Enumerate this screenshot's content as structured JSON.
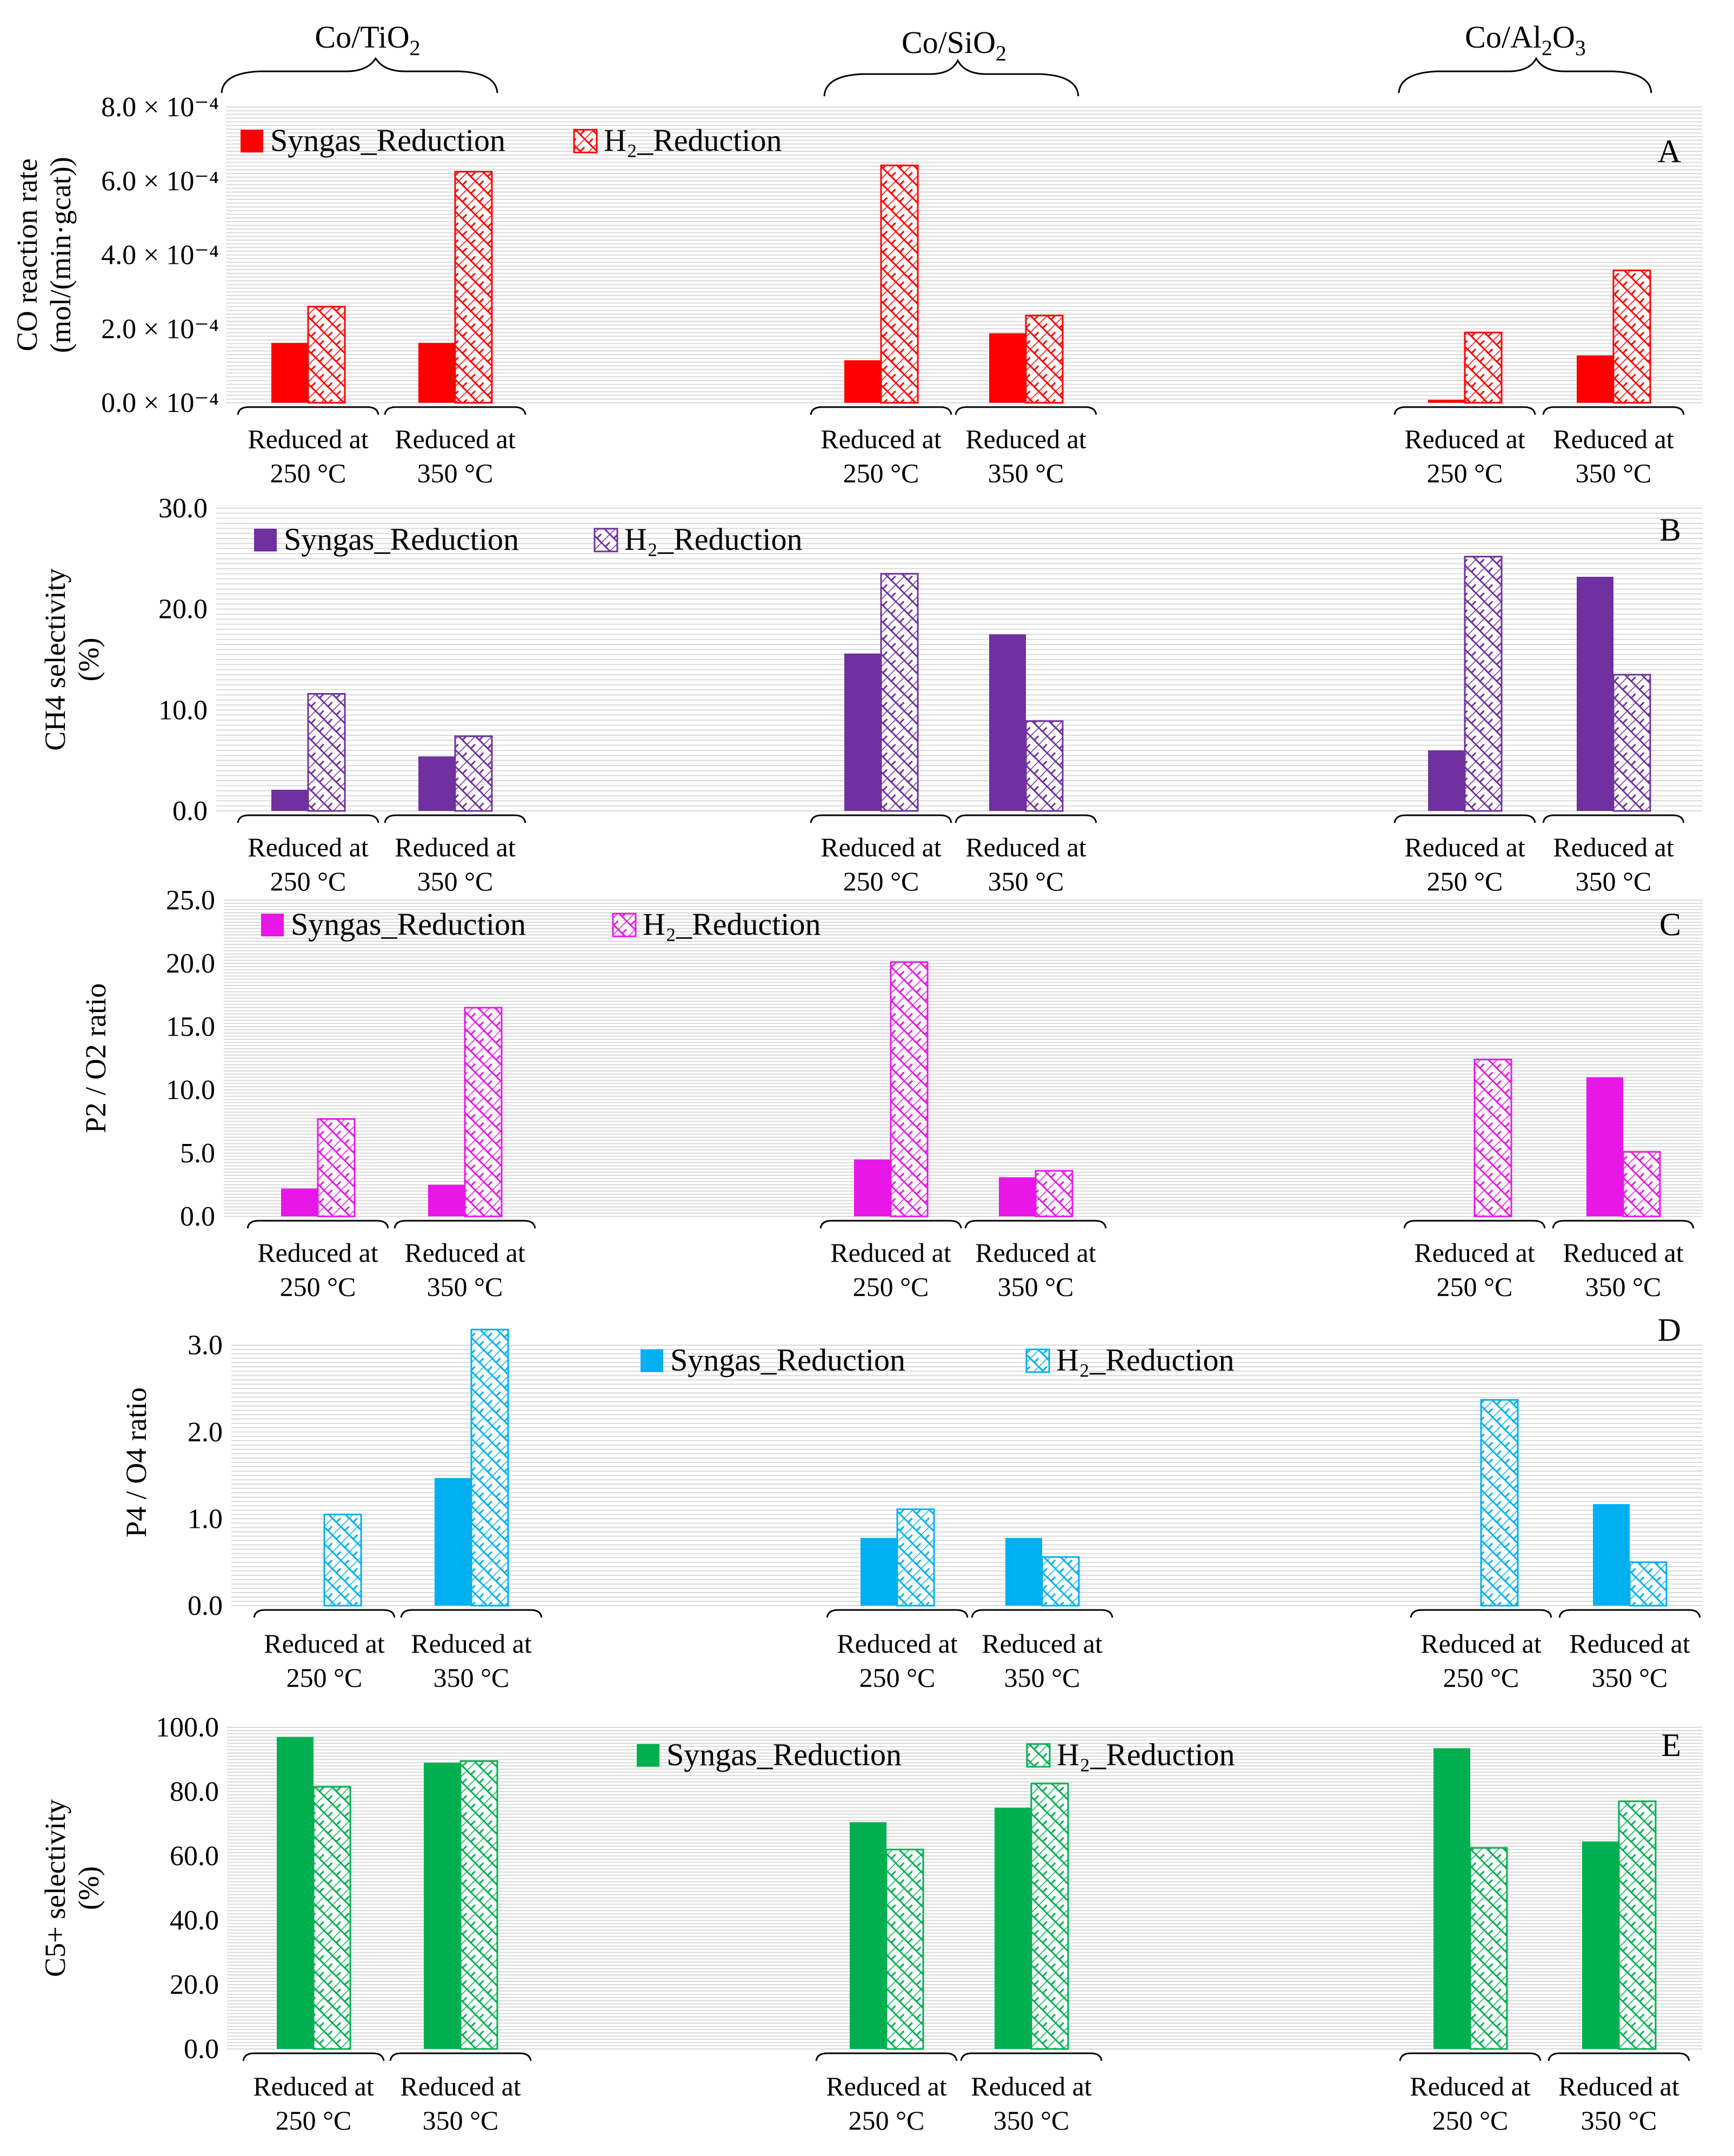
{
  "figure": {
    "catalysts": [
      {
        "label": "Co/TiO",
        "sub": "2",
        "label_html_note": "Co/TiO2"
      },
      {
        "label": "Co/SiO",
        "sub": "2",
        "label_html_note": "Co/SiO2"
      },
      {
        "label": "Co/Al",
        "sub": "2",
        "label2": "O",
        "sub2": "3",
        "label_html_note": "Co/Al2O3"
      }
    ],
    "group_labels": {
      "line1": "Reduced at",
      "line_250": "250 °C",
      "line_350": "350 °C"
    },
    "legend": {
      "syngas": "Syngas_Reduction",
      "h2": "H₂_Reduction"
    }
  },
  "chart_data": [
    {
      "type": "bar",
      "panel": "A",
      "ylabel_line1": "CO reaction rate",
      "ylabel_line2": "(mol/(min·gcat))",
      "ylim": [
        0,
        0.0008
      ],
      "tick_labels": [
        "0.0 × 10⁻⁴",
        "2.0 × 10⁻⁴",
        "4.0 × 10⁻⁴",
        "6.0 × 10⁻⁴",
        "8.0 × 10⁻⁴"
      ],
      "tick_values": [
        0,
        0.0002,
        0.0004,
        0.0006,
        0.0008
      ],
      "color": "#ff0000",
      "legend_position": "top-left",
      "categories": [
        "Co/TiO2 250 °C",
        "Co/TiO2 350 °C",
        "Co/SiO2 250 °C",
        "Co/SiO2 350 °C",
        "Co/Al2O3 250 °C",
        "Co/Al2O3 350 °C"
      ],
      "series": [
        {
          "name": "Syngas_Reduction",
          "values": [
            0.000162,
            0.000162,
            0.000115,
            0.000188,
            8e-06,
            0.000128
          ]
        },
        {
          "name": "H2_Reduction",
          "values": [
            0.00026,
            0.000625,
            0.000642,
            0.000236,
            0.00019,
            0.000358
          ]
        }
      ]
    },
    {
      "type": "bar",
      "panel": "B",
      "ylabel_line1": "CH4 selectivity",
      "ylabel_line2": "(%)",
      "ylim": [
        0,
        30
      ],
      "tick_labels": [
        "0.0",
        "10.0",
        "20.0",
        "30.0"
      ],
      "tick_values": [
        0,
        10,
        20,
        30
      ],
      "color": "#7030a0",
      "legend_position": "top-left",
      "categories": [
        "Co/TiO2 250 °C",
        "Co/TiO2 350 °C",
        "Co/SiO2 250 °C",
        "Co/SiO2 350 °C",
        "Co/Al2O3 250 °C",
        "Co/Al2O3 350 °C"
      ],
      "series": [
        {
          "name": "Syngas_Reduction",
          "values": [
            2.1,
            5.4,
            15.6,
            17.5,
            6.0,
            23.2
          ]
        },
        {
          "name": "H2_Reduction",
          "values": [
            11.6,
            7.4,
            23.5,
            8.9,
            25.2,
            13.5
          ]
        }
      ]
    },
    {
      "type": "bar",
      "panel": "C",
      "ylabel_line1": "P2 / O2 ratio",
      "ylim": [
        0,
        25
      ],
      "tick_labels": [
        "0.0",
        "5.0",
        "10.0",
        "15.0",
        "20.0",
        "25.0"
      ],
      "tick_values": [
        0,
        5,
        10,
        15,
        20,
        25
      ],
      "color": "#e817e8",
      "legend_position": "top-left",
      "categories": [
        "Co/TiO2 250 °C",
        "Co/TiO2 350 °C",
        "Co/SiO2 250 °C",
        "Co/SiO2 350 °C",
        "Co/Al2O3 250 °C",
        "Co/Al2O3 350 °C"
      ],
      "series": [
        {
          "name": "Syngas_Reduction",
          "values": [
            2.2,
            2.5,
            4.5,
            3.1,
            0.0,
            11.0
          ]
        },
        {
          "name": "H2_Reduction",
          "values": [
            7.7,
            16.5,
            20.1,
            3.6,
            12.4,
            5.1
          ]
        }
      ]
    },
    {
      "type": "bar",
      "panel": "D",
      "ylabel_line1": "P4 / O4 ratio",
      "ylim": [
        0,
        3.3
      ],
      "tick_labels": [
        "0.0",
        "1.0",
        "2.0",
        "3.0"
      ],
      "tick_values": [
        0,
        1,
        2,
        3
      ],
      "color": "#00b0f0",
      "legend_position": "top-center",
      "categories": [
        "Co/TiO2 250 °C",
        "Co/TiO2 350 °C",
        "Co/SiO2 250 °C",
        "Co/SiO2 350 °C",
        "Co/Al2O3 250 °C",
        "Co/Al2O3 350 °C"
      ],
      "series": [
        {
          "name": "Syngas_Reduction",
          "values": [
            0.0,
            1.47,
            0.78,
            0.78,
            0.0,
            1.17
          ]
        },
        {
          "name": "H2_Reduction",
          "values": [
            1.05,
            3.18,
            1.11,
            0.56,
            2.37,
            0.5
          ]
        }
      ]
    },
    {
      "type": "bar",
      "panel": "E",
      "ylabel_line1": "C5+ selectivity",
      "ylabel_line2": "(%)",
      "ylim": [
        0,
        100
      ],
      "tick_labels": [
        "0.0",
        "20.0",
        "40.0",
        "60.0",
        "80.0",
        "100.0"
      ],
      "tick_values": [
        0,
        20,
        40,
        60,
        80,
        100
      ],
      "color": "#00b050",
      "legend_position": "top-center",
      "categories": [
        "Co/TiO2 250 °C",
        "Co/TiO2 350 °C",
        "Co/SiO2 250 °C",
        "Co/SiO2 350 °C",
        "Co/Al2O3 250 °C",
        "Co/Al2O3 350 °C"
      ],
      "series": [
        {
          "name": "Syngas_Reduction",
          "values": [
            97.0,
            89.0,
            70.5,
            75.0,
            93.5,
            64.5
          ]
        },
        {
          "name": "H2_Reduction",
          "values": [
            81.5,
            89.5,
            62.0,
            82.5,
            62.5,
            77.0
          ]
        }
      ]
    }
  ]
}
